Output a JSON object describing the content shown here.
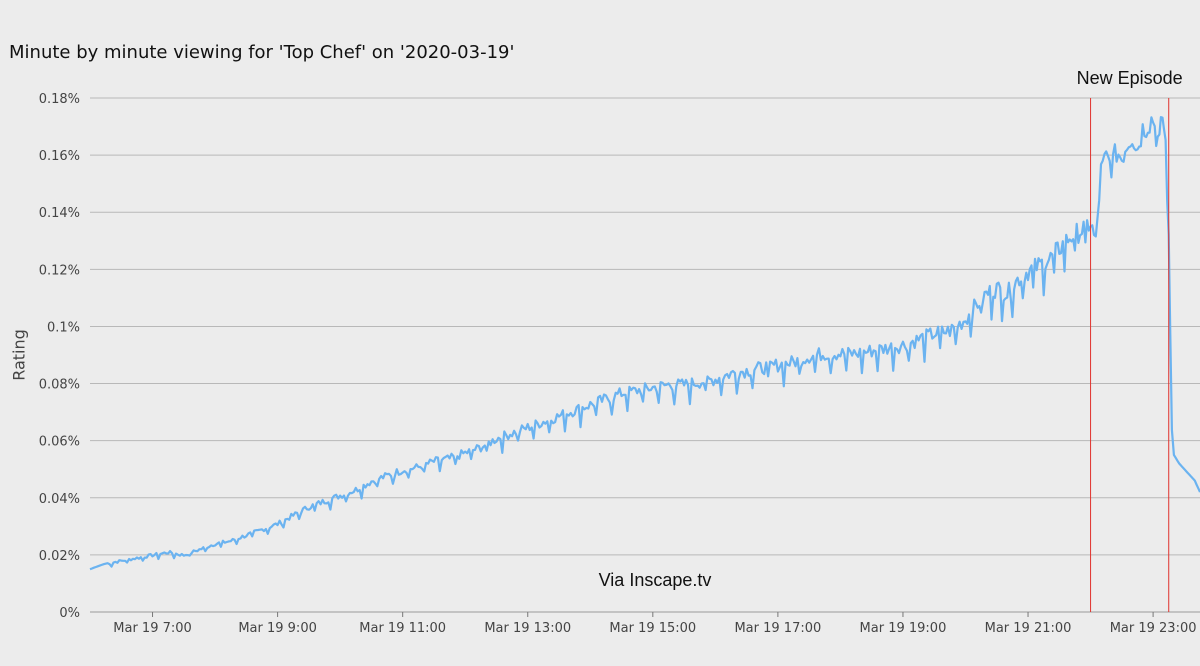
{
  "chart_data": {
    "type": "line",
    "title": "Minute by minute viewing for 'Top Chef' on '2020-03-19'",
    "xlabel": "",
    "ylabel": "Rating",
    "xlim": [
      "Mar 19 06:00",
      "Mar 19 23:45"
    ],
    "ylim": [
      0,
      0.18
    ],
    "grid": "horizontal",
    "colors": {
      "line": "#6bb3f0",
      "marker": "#e0332d",
      "grid": "#b8b8b8",
      "background": "#ececec"
    },
    "y_ticks": [
      "0%",
      "0.02%",
      "0.04%",
      "0.06%",
      "0.08%",
      "0.1%",
      "0.12%",
      "0.14%",
      "0.16%",
      "0.18%"
    ],
    "x_ticks": [
      "Mar 19 7:00",
      "Mar 19 9:00",
      "Mar 19 11:00",
      "Mar 19 13:00",
      "Mar 19 15:00",
      "Mar 19 17:00",
      "Mar 19 19:00",
      "Mar 19 21:00",
      "Mar 19 23:00"
    ],
    "series": [
      {
        "x": [
          "Mar 19 06:00",
          "Mar 19 06:15",
          "Mar 19 06:30",
          "Mar 19 06:45",
          "Mar 19 07:00",
          "Mar 19 07:15",
          "Mar 19 07:30",
          "Mar 19 07:45",
          "Mar 19 08:00",
          "Mar 19 08:15",
          "Mar 19 08:30",
          "Mar 19 08:45",
          "Mar 19 09:00",
          "Mar 19 09:15",
          "Mar 19 09:30",
          "Mar 19 09:45",
          "Mar 19 10:00",
          "Mar 19 10:15",
          "Mar 19 10:30",
          "Mar 19 10:45",
          "Mar 19 11:00",
          "Mar 19 11:15",
          "Mar 19 11:30",
          "Mar 19 11:45",
          "Mar 19 12:00",
          "Mar 19 12:15",
          "Mar 19 12:30",
          "Mar 19 12:45",
          "Mar 19 13:00",
          "Mar 19 13:15",
          "Mar 19 13:30",
          "Mar 19 13:45",
          "Mar 19 14:00",
          "Mar 19 14:15",
          "Mar 19 14:30",
          "Mar 19 14:45",
          "Mar 19 15:00",
          "Mar 19 15:15",
          "Mar 19 15:30",
          "Mar 19 15:45",
          "Mar 19 16:00",
          "Mar 19 16:15",
          "Mar 19 16:30",
          "Mar 19 16:45",
          "Mar 19 17:00",
          "Mar 19 17:15",
          "Mar 19 17:30",
          "Mar 19 17:45",
          "Mar 19 18:00",
          "Mar 19 18:15",
          "Mar 19 18:30",
          "Mar 19 18:45",
          "Mar 19 19:00",
          "Mar 19 19:15",
          "Mar 19 19:30",
          "Mar 19 19:45",
          "Mar 19 20:00",
          "Mar 19 20:10",
          "Mar 19 20:20",
          "Mar 19 20:30",
          "Mar 19 20:40",
          "Mar 19 20:50",
          "Mar 19 21:00",
          "Mar 19 21:10",
          "Mar 19 21:20",
          "Mar 19 21:30",
          "Mar 19 21:40",
          "Mar 19 21:50",
          "Mar 19 22:00",
          "Mar 19 22:05",
          "Mar 19 22:10",
          "Mar 19 22:15",
          "Mar 19 22:20",
          "Mar 19 22:25",
          "Mar 19 22:30",
          "Mar 19 22:35",
          "Mar 19 22:40",
          "Mar 19 22:45",
          "Mar 19 22:50",
          "Mar 19 22:55",
          "Mar 19 23:00",
          "Mar 19 23:03",
          "Mar 19 23:06",
          "Mar 19 23:09",
          "Mar 19 23:12",
          "Mar 19 23:15",
          "Mar 19 23:18",
          "Mar 19 23:20",
          "Mar 19 23:25",
          "Mar 19 23:30",
          "Mar 19 23:35",
          "Mar 19 23:40",
          "Mar 19 23:45"
        ],
        "values": [
          0.015,
          0.017,
          0.018,
          0.019,
          0.02,
          0.021,
          0.02,
          0.022,
          0.024,
          0.025,
          0.027,
          0.029,
          0.031,
          0.034,
          0.037,
          0.039,
          0.041,
          0.043,
          0.046,
          0.048,
          0.05,
          0.051,
          0.053,
          0.054,
          0.056,
          0.058,
          0.061,
          0.063,
          0.065,
          0.067,
          0.069,
          0.071,
          0.073,
          0.075,
          0.077,
          0.078,
          0.079,
          0.08,
          0.08,
          0.081,
          0.082,
          0.084,
          0.085,
          0.086,
          0.087,
          0.088,
          0.09,
          0.091,
          0.091,
          0.091,
          0.092,
          0.093,
          0.094,
          0.096,
          0.098,
          0.099,
          0.103,
          0.108,
          0.112,
          0.114,
          0.112,
          0.117,
          0.12,
          0.122,
          0.124,
          0.128,
          0.132,
          0.134,
          0.137,
          0.13,
          0.155,
          0.16,
          0.157,
          0.162,
          0.16,
          0.165,
          0.168,
          0.163,
          0.17,
          0.172,
          0.174,
          0.168,
          0.165,
          0.175,
          0.165,
          0.13,
          0.065,
          0.055,
          0.052,
          0.05,
          0.048,
          0.046,
          0.042
        ]
      }
    ],
    "annotations": {
      "episode_label": "New Episode",
      "episode_markers": [
        "Mar 19 22:00",
        "Mar 19 23:15"
      ],
      "source": "Via Inscape.tv"
    }
  }
}
